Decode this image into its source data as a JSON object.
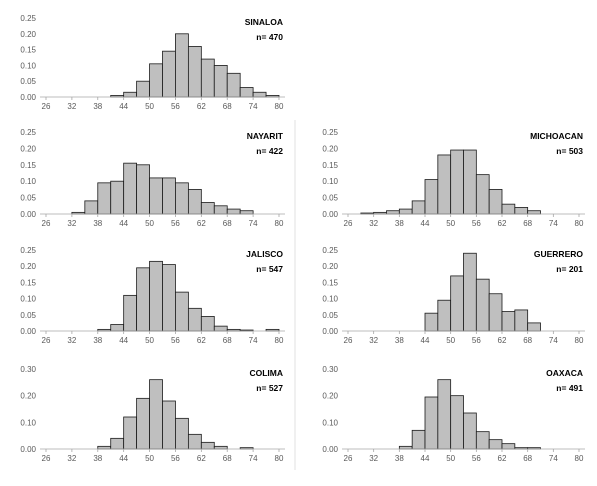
{
  "colors": {
    "bar_fill": "#bfbfbf",
    "bar_stroke": "#1a1a1a",
    "axis": "#a6a6a6",
    "tick_text": "#595959"
  },
  "chart_data": [
    {
      "type": "bar",
      "title": "SINALOA",
      "n_label": "n= 470",
      "x_ticks": [
        "26",
        "32",
        "38",
        "44",
        "50",
        "56",
        "62",
        "68",
        "74",
        "80"
      ],
      "y_ticks": [
        "0.00",
        "0.05",
        "0.10",
        "0.15",
        "0.20",
        "0.25"
      ],
      "ylim": [
        0,
        0.25
      ],
      "bins_start": 26,
      "bin_width": 3,
      "values": [
        0,
        0,
        0,
        0,
        0,
        0.005,
        0.015,
        0.05,
        0.105,
        0.145,
        0.2,
        0.16,
        0.12,
        0.1,
        0.075,
        0.03,
        0.015,
        0.005
      ]
    },
    {
      "type": "bar",
      "title": "NAYARIT",
      "n_label": "n= 422",
      "x_ticks": [
        "26",
        "32",
        "38",
        "44",
        "50",
        "56",
        "62",
        "68",
        "74",
        "80"
      ],
      "y_ticks": [
        "0.00",
        "0.05",
        "0.10",
        "0.15",
        "0.20",
        "0.25"
      ],
      "ylim": [
        0,
        0.25
      ],
      "bins_start": 26,
      "bin_width": 3,
      "values": [
        0,
        0,
        0.005,
        0.04,
        0.095,
        0.1,
        0.155,
        0.15,
        0.11,
        0.11,
        0.095,
        0.075,
        0.035,
        0.025,
        0.015,
        0.01,
        0,
        0
      ]
    },
    {
      "type": "bar",
      "title": "MICHOACAN",
      "n_label": "n= 503",
      "x_ticks": [
        "26",
        "32",
        "38",
        "44",
        "50",
        "56",
        "62",
        "68",
        "74",
        "80"
      ],
      "y_ticks": [
        "0.00",
        "0.05",
        "0.10",
        "0.15",
        "0.20",
        "0.25"
      ],
      "ylim": [
        0,
        0.25
      ],
      "bins_start": 26,
      "bin_width": 3,
      "values": [
        0,
        0.003,
        0.005,
        0.01,
        0.015,
        0.04,
        0.105,
        0.18,
        0.195,
        0.195,
        0.12,
        0.075,
        0.03,
        0.02,
        0.01,
        0,
        0,
        0
      ]
    },
    {
      "type": "bar",
      "title": "JALISCO",
      "n_label": "n= 547",
      "x_ticks": [
        "26",
        "32",
        "38",
        "44",
        "50",
        "56",
        "62",
        "68",
        "74",
        "80"
      ],
      "y_ticks": [
        "0.00",
        "0.05",
        "0.10",
        "0.15",
        "0.20",
        "0.25"
      ],
      "ylim": [
        0,
        0.25
      ],
      "bins_start": 26,
      "bin_width": 3,
      "values": [
        0,
        0,
        0,
        0,
        0.005,
        0.02,
        0.11,
        0.195,
        0.215,
        0.205,
        0.12,
        0.07,
        0.045,
        0.015,
        0.005,
        0.003,
        0,
        0.005
      ]
    },
    {
      "type": "bar",
      "title": "GUERRERO",
      "n_label": "n= 201",
      "x_ticks": [
        "26",
        "32",
        "38",
        "44",
        "50",
        "56",
        "62",
        "68",
        "74",
        "80"
      ],
      "y_ticks": [
        "0.00",
        "0.05",
        "0.10",
        "0.15",
        "0.20",
        "0.25"
      ],
      "ylim": [
        0,
        0.25
      ],
      "bins_start": 26,
      "bin_width": 3,
      "values": [
        0,
        0,
        0,
        0,
        0,
        0,
        0.055,
        0.095,
        0.17,
        0.24,
        0.16,
        0.115,
        0.06,
        0.065,
        0.025,
        0,
        0,
        0
      ]
    },
    {
      "type": "bar",
      "title": "COLIMA",
      "n_label": "n= 527",
      "x_ticks": [
        "26",
        "32",
        "38",
        "44",
        "50",
        "56",
        "62",
        "68",
        "74",
        "80"
      ],
      "y_ticks": [
        "0.00",
        "0.10",
        "0.20",
        "0.30"
      ],
      "ylim": [
        0,
        0.3
      ],
      "bins_start": 26,
      "bin_width": 3,
      "values": [
        0,
        0,
        0,
        0,
        0.01,
        0.04,
        0.12,
        0.19,
        0.26,
        0.18,
        0.115,
        0.055,
        0.025,
        0.01,
        0,
        0.005,
        0,
        0
      ]
    },
    {
      "type": "bar",
      "title": "OAXACA",
      "n_label": "n= 491",
      "x_ticks": [
        "26",
        "32",
        "38",
        "44",
        "50",
        "56",
        "62",
        "68",
        "74",
        "80"
      ],
      "y_ticks": [
        "0.00",
        "0.10",
        "0.20",
        "0.30"
      ],
      "ylim": [
        0,
        0.3
      ],
      "bins_start": 26,
      "bin_width": 3,
      "values": [
        0,
        0,
        0,
        0,
        0.01,
        0.07,
        0.195,
        0.26,
        0.2,
        0.135,
        0.065,
        0.035,
        0.02,
        0.005,
        0.005,
        0,
        0,
        0
      ]
    }
  ]
}
